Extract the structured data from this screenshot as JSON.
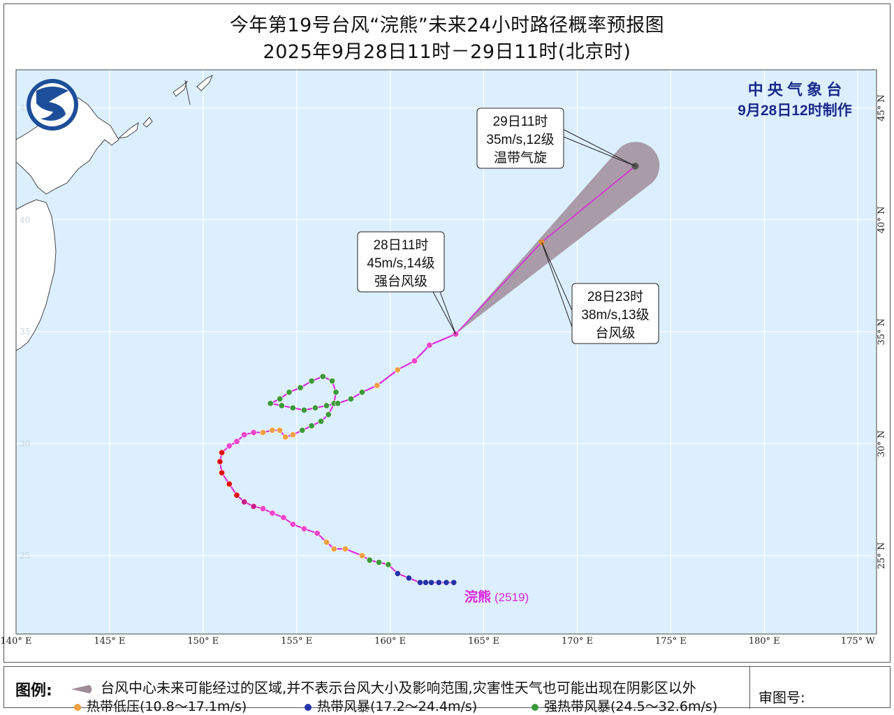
{
  "title": {
    "line1": "今年第19号台风“浣熊”未来24小时路径概率预报图",
    "line2": "2025年9月28日11时－29日11时(北京时)"
  },
  "agency": {
    "name": "中 央 气 象 台",
    "made": "9月28日12时制作"
  },
  "axes": {
    "lon_ticks": [
      "140° E",
      "145° E",
      "150° E",
      "155° E",
      "160° E",
      "165° E",
      "170° E",
      "175° E",
      "180° E",
      "175° W"
    ],
    "lat_ticks": [
      "45° N",
      "40° N",
      "35° N",
      "30° N",
      "25° N"
    ],
    "lat_ticks_left": [
      "45",
      "40",
      "35",
      "30",
      "25"
    ],
    "lon_range": [
      140,
      186
    ],
    "lat_range": [
      21.5,
      46.7
    ]
  },
  "callouts": [
    {
      "time": "29日11时",
      "wind": "35m/s,12级",
      "level": "温带气旋"
    },
    {
      "time": "28日11时",
      "wind": "45m/s,14级",
      "level": "强台风级"
    },
    {
      "time": "28日23时",
      "wind": "38m/s,13级",
      "level": "台风级"
    }
  ],
  "storm_label": "浣熊",
  "storm_id": "(2519)",
  "legend": {
    "label": "图例:",
    "cone_text": "台风中心未来可能经过的区域,并不表示台风大小及影响范围,灾害性天气也可能出现在阴影区以外",
    "items": [
      {
        "label": "热带低压(10.8～17.1m/s)",
        "color": "#f0a040"
      },
      {
        "label": "热带风暴(17.2～24.4m/s)",
        "color": "#2233aa"
      },
      {
        "label": "强热带风暴(24.5～32.6m/s)",
        "color": "#3a9a3a"
      }
    ],
    "review": "审图号:"
  },
  "colors": {
    "ocean": "#dcefff",
    "land": "#ffffff",
    "track": "#e020e0",
    "cone": "#a08c99",
    "grid": "#ffffff",
    "agency_text": "#1a2a8a",
    "storm_label": "#dd22dd"
  },
  "track": {
    "observed": [
      {
        "lon": 163.4,
        "lat": 23.8,
        "cat": "TS"
      },
      {
        "lon": 163.0,
        "lat": 23.8,
        "cat": "TS"
      },
      {
        "lon": 162.6,
        "lat": 23.8,
        "cat": "TS"
      },
      {
        "lon": 162.2,
        "lat": 23.8,
        "cat": "TS"
      },
      {
        "lon": 161.9,
        "lat": 23.8,
        "cat": "TS"
      },
      {
        "lon": 161.6,
        "lat": 23.8,
        "cat": "TS"
      },
      {
        "lon": 161.0,
        "lat": 24.0,
        "cat": "TS"
      },
      {
        "lon": 160.4,
        "lat": 24.2,
        "cat": "TS"
      },
      {
        "lon": 159.9,
        "lat": 24.6,
        "cat": "STS"
      },
      {
        "lon": 159.4,
        "lat": 24.7,
        "cat": "STS"
      },
      {
        "lon": 158.9,
        "lat": 24.8,
        "cat": "STS"
      },
      {
        "lon": 158.5,
        "lat": 25.0,
        "cat": "TD"
      },
      {
        "lon": 157.6,
        "lat": 25.3,
        "cat": "TD"
      },
      {
        "lon": 157.0,
        "lat": 25.3,
        "cat": "TD"
      },
      {
        "lon": 156.6,
        "lat": 25.6,
        "cat": "TD"
      },
      {
        "lon": 156.1,
        "lat": 26.0,
        "cat": "TY"
      },
      {
        "lon": 155.4,
        "lat": 26.2,
        "cat": "TY"
      },
      {
        "lon": 154.8,
        "lat": 26.4,
        "cat": "TY"
      },
      {
        "lon": 154.3,
        "lat": 26.7,
        "cat": "TY"
      },
      {
        "lon": 153.7,
        "lat": 26.9,
        "cat": "TY"
      },
      {
        "lon": 153.2,
        "lat": 27.1,
        "cat": "TY"
      },
      {
        "lon": 152.7,
        "lat": 27.2,
        "cat": "STY"
      },
      {
        "lon": 152.2,
        "lat": 27.4,
        "cat": "STY"
      },
      {
        "lon": 151.8,
        "lat": 27.7,
        "cat": "SuperTY"
      },
      {
        "lon": 151.4,
        "lat": 28.2,
        "cat": "SuperTY"
      },
      {
        "lon": 151.0,
        "lat": 28.7,
        "cat": "SuperTY"
      },
      {
        "lon": 150.9,
        "lat": 29.2,
        "cat": "SuperTY"
      },
      {
        "lon": 151.0,
        "lat": 29.6,
        "cat": "SuperTY"
      },
      {
        "lon": 151.4,
        "lat": 29.9,
        "cat": "TY"
      },
      {
        "lon": 151.8,
        "lat": 30.1,
        "cat": "TY"
      },
      {
        "lon": 152.2,
        "lat": 30.4,
        "cat": "TY"
      },
      {
        "lon": 152.7,
        "lat": 30.5,
        "cat": "TY"
      },
      {
        "lon": 153.2,
        "lat": 30.5,
        "cat": "TD"
      },
      {
        "lon": 153.7,
        "lat": 30.6,
        "cat": "TD"
      },
      {
        "lon": 154.1,
        "lat": 30.6,
        "cat": "TD"
      },
      {
        "lon": 154.4,
        "lat": 30.3,
        "cat": "TD"
      },
      {
        "lon": 154.8,
        "lat": 30.4,
        "cat": "TD"
      },
      {
        "lon": 155.3,
        "lat": 30.6,
        "cat": "STS"
      },
      {
        "lon": 155.8,
        "lat": 30.8,
        "cat": "STS"
      },
      {
        "lon": 156.3,
        "lat": 31.0,
        "cat": "STS"
      },
      {
        "lon": 156.7,
        "lat": 31.3,
        "cat": "STS"
      },
      {
        "lon": 157.0,
        "lat": 31.8,
        "cat": "STS"
      },
      {
        "lon": 157.1,
        "lat": 32.3,
        "cat": "STS"
      },
      {
        "lon": 156.9,
        "lat": 32.8,
        "cat": "STS"
      },
      {
        "lon": 156.4,
        "lat": 33.0,
        "cat": "STS"
      },
      {
        "lon": 155.8,
        "lat": 32.8,
        "cat": "STS"
      },
      {
        "lon": 155.2,
        "lat": 32.5,
        "cat": "STS"
      },
      {
        "lon": 154.6,
        "lat": 32.3,
        "cat": "STS"
      },
      {
        "lon": 154.1,
        "lat": 32.0,
        "cat": "STS"
      },
      {
        "lon": 153.6,
        "lat": 31.8,
        "cat": "STS"
      },
      {
        "lon": 154.2,
        "lat": 31.7,
        "cat": "STS"
      },
      {
        "lon": 154.8,
        "lat": 31.6,
        "cat": "STS"
      },
      {
        "lon": 155.4,
        "lat": 31.5,
        "cat": "STS"
      },
      {
        "lon": 156.0,
        "lat": 31.6,
        "cat": "STS"
      },
      {
        "lon": 156.6,
        "lat": 31.7,
        "cat": "STS"
      },
      {
        "lon": 157.2,
        "lat": 31.8,
        "cat": "STS"
      },
      {
        "lon": 157.9,
        "lat": 32.0,
        "cat": "STS"
      },
      {
        "lon": 158.5,
        "lat": 32.3,
        "cat": "STS"
      },
      {
        "lon": 159.3,
        "lat": 32.6,
        "cat": "TD"
      },
      {
        "lon": 160.4,
        "lat": 33.3,
        "cat": "TD"
      },
      {
        "lon": 161.3,
        "lat": 33.7,
        "cat": "TY"
      },
      {
        "lon": 162.1,
        "lat": 34.4,
        "cat": "TY"
      },
      {
        "lon": 163.5,
        "lat": 34.9,
        "cat": "STY"
      }
    ],
    "forecast": [
      {
        "lon": 163.5,
        "lat": 34.9
      },
      {
        "lon": 168.1,
        "lat": 39.0
      },
      {
        "lon": 173.1,
        "lat": 42.4
      }
    ]
  }
}
